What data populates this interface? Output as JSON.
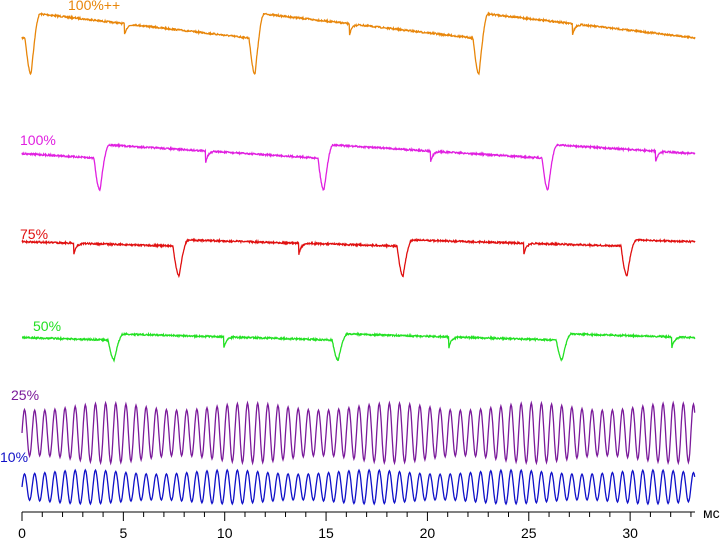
{
  "chart_data": {
    "type": "line",
    "title": "",
    "xlabel": "",
    "ylabel": "",
    "x_unit": "мс",
    "xlim": [
      0,
      33.2
    ],
    "x_ticks": [
      0,
      5,
      10,
      15,
      20,
      25,
      30
    ],
    "y_axis": "none",
    "grid": false,
    "legend": "inline labels at left of each trace",
    "series": [
      {
        "name": "100%++",
        "color": "#e8860a",
        "description_period_ms": 11.1,
        "peak_times_ms": [
          0.9,
          12.0,
          23.0
        ],
        "notch_times_ms": [
          5.1,
          16.2,
          27.2
        ],
        "trough_times_ms": [
          0.2,
          11.2,
          22.3
        ]
      },
      {
        "name": "100%",
        "color": "#e020e0",
        "peak_times_ms": [
          4.3,
          15.3,
          26.4
        ],
        "notch_times_ms": [
          9.1,
          20.2,
          31.3
        ],
        "trough_times_ms": [
          3.9,
          14.9,
          25.9
        ]
      },
      {
        "name": "75%",
        "color": "#e01010",
        "peak_times_ms": [
          8.2,
          19.3,
          30.3
        ],
        "notch_times_ms": [
          2.6,
          13.7,
          24.8
        ],
        "trough_times_ms": [
          7.7,
          18.8,
          29.8
        ]
      },
      {
        "name": "50%",
        "color": "#22e022",
        "peak_times_ms": [
          5.0,
          16.1,
          27.2
        ],
        "notch_times_ms": [
          10.0,
          21.1,
          32.1
        ],
        "trough_times_ms": [
          4.6,
          15.7,
          26.8
        ]
      },
      {
        "name": "25%",
        "color": "#7a1a9a",
        "oscillation_period_ms": 0.5
      },
      {
        "name": "10%",
        "color": "#1010c8",
        "oscillation_period_ms": 0.5
      }
    ]
  }
}
